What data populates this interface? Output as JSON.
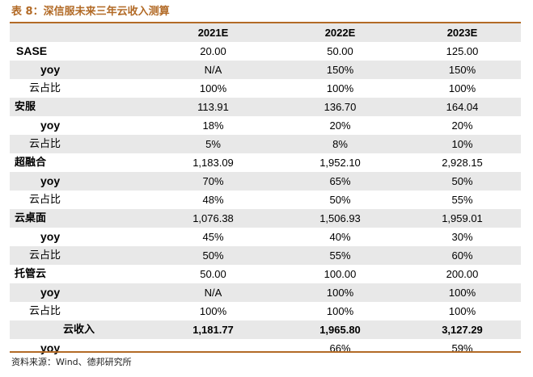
{
  "title": "表 8：深信服未来三年云收入测算",
  "columns": [
    "",
    "2021E",
    "2022E",
    "2023E"
  ],
  "rows": [
    {
      "label": "SASE",
      "kind": "main-latin",
      "values": [
        "20.00",
        "50.00",
        "125.00"
      ]
    },
    {
      "label": "yoy",
      "kind": "yoy",
      "values": [
        "N/A",
        "150%",
        "150%"
      ]
    },
    {
      "label": "云占比",
      "kind": "share",
      "values": [
        "100%",
        "100%",
        "100%"
      ]
    },
    {
      "label": "安服",
      "kind": "main",
      "values": [
        "113.91",
        "136.70",
        "164.04"
      ]
    },
    {
      "label": "yoy",
      "kind": "yoy",
      "values": [
        "18%",
        "20%",
        "20%"
      ]
    },
    {
      "label": "云占比",
      "kind": "share",
      "values": [
        "5%",
        "8%",
        "10%"
      ]
    },
    {
      "label": "超融合",
      "kind": "main",
      "values": [
        "1,183.09",
        "1,952.10",
        "2,928.15"
      ]
    },
    {
      "label": "yoy",
      "kind": "yoy",
      "values": [
        "70%",
        "65%",
        "50%"
      ]
    },
    {
      "label": "云占比",
      "kind": "share",
      "values": [
        "48%",
        "50%",
        "55%"
      ]
    },
    {
      "label": "云桌面",
      "kind": "main",
      "values": [
        "1,076.38",
        "1,506.93",
        "1,959.01"
      ]
    },
    {
      "label": "yoy",
      "kind": "yoy",
      "values": [
        "45%",
        "40%",
        "30%"
      ]
    },
    {
      "label": "云占比",
      "kind": "share",
      "values": [
        "50%",
        "55%",
        "60%"
      ]
    },
    {
      "label": "托管云",
      "kind": "main",
      "values": [
        "50.00",
        "100.00",
        "200.00"
      ]
    },
    {
      "label": "yoy",
      "kind": "yoy",
      "values": [
        "N/A",
        "100%",
        "100%"
      ]
    },
    {
      "label": "云占比",
      "kind": "share",
      "values": [
        "100%",
        "100%",
        "100%"
      ]
    },
    {
      "label": "云收入",
      "kind": "total",
      "values": [
        "1,181.77",
        "1,965.80",
        "3,127.29"
      ]
    },
    {
      "label": "yoy",
      "kind": "yoy",
      "values": [
        "",
        "66%",
        "59%"
      ]
    }
  ],
  "source": "资料来源：Wind、德邦研究所"
}
